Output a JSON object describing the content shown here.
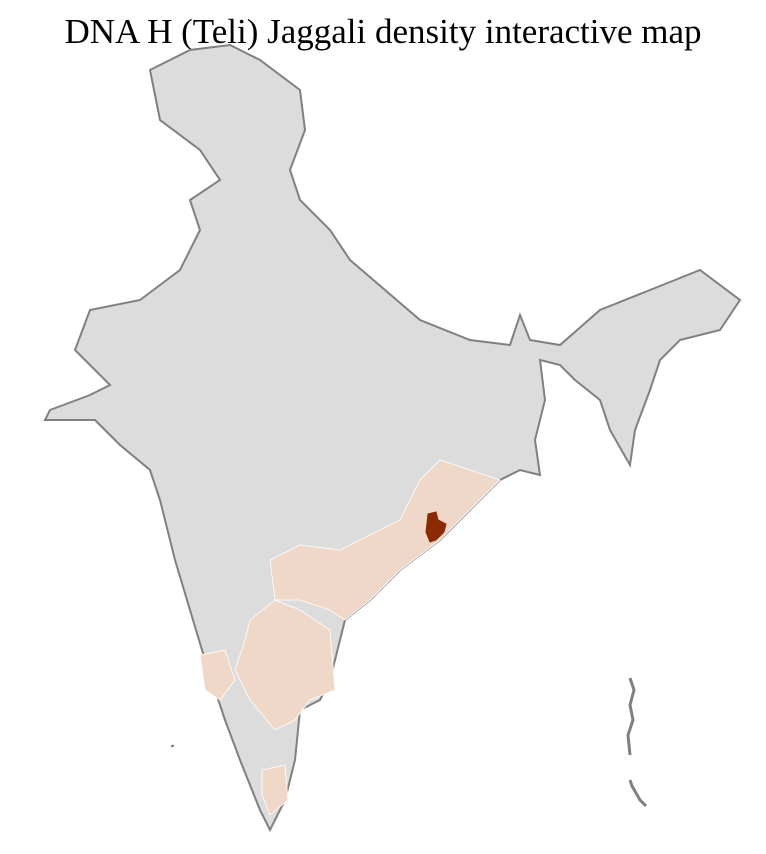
{
  "title": "DNA H (Teli) Jaggali density interactive map",
  "colors": {
    "base_region": "#dcdcdc",
    "district_border": "#ffffff",
    "state_border": "#808080",
    "low_density": "#f0d8c8",
    "high_density": "#8b2a00"
  }
}
